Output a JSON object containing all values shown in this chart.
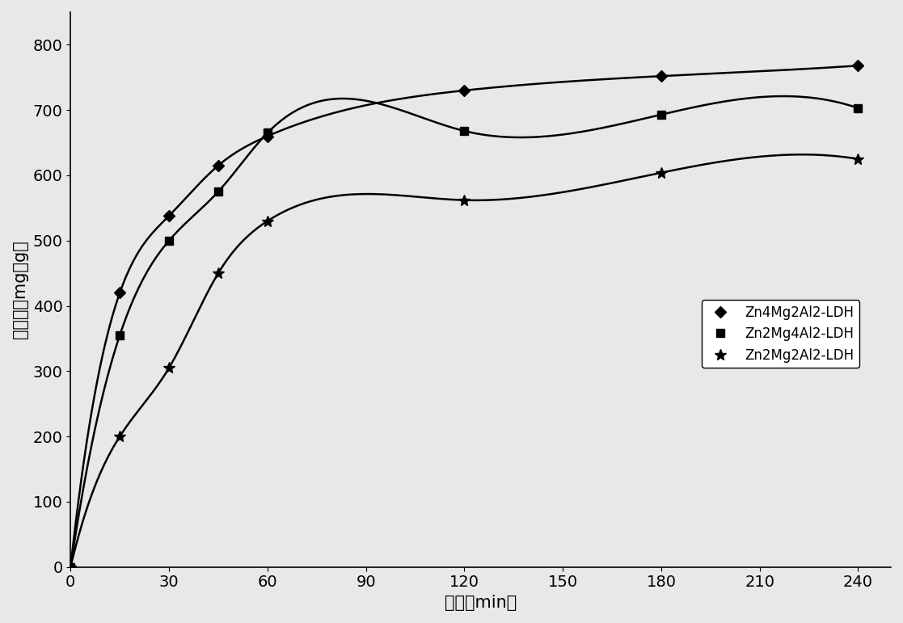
{
  "series": [
    {
      "label": "Zn4Mg2Al2-LDH",
      "x": [
        0,
        15,
        30,
        45,
        60,
        120,
        180,
        240
      ],
      "y": [
        0,
        420,
        538,
        615,
        660,
        730,
        752,
        768
      ],
      "color": "#000000",
      "marker": "D",
      "markersize": 7,
      "linewidth": 1.8
    },
    {
      "label": "Zn2Mg4Al2-LDH",
      "x": [
        0,
        15,
        30,
        45,
        60,
        120,
        180,
        240
      ],
      "y": [
        0,
        355,
        500,
        575,
        665,
        668,
        693,
        703
      ],
      "color": "#000000",
      "marker": "s",
      "markersize": 7,
      "linewidth": 1.8
    },
    {
      "label": "Zn2Mg2Al2-LDH",
      "x": [
        0,
        15,
        30,
        45,
        60,
        120,
        180,
        240
      ],
      "y": [
        0,
        200,
        305,
        450,
        530,
        562,
        604,
        625
      ],
      "color": "#000000",
      "marker": "*",
      "markersize": 10,
      "linewidth": 1.8
    }
  ],
  "xlabel": "时间（min）",
  "ylabel": "吸附量（mg／g）",
  "xlim": [
    0,
    250
  ],
  "ylim": [
    0,
    850
  ],
  "xticks": [
    0,
    30,
    60,
    90,
    120,
    150,
    180,
    210,
    240
  ],
  "yticks": [
    0,
    100,
    200,
    300,
    400,
    500,
    600,
    700,
    800
  ],
  "background_color": "#ffffff",
  "font_size": 14,
  "label_font_size": 15,
  "legend_labels": [
    "Zn4Mg2Al2-LDH",
    "Zn2Mg4Al2-LDH",
    "Zn2Mg2Al2-LDH"
  ]
}
